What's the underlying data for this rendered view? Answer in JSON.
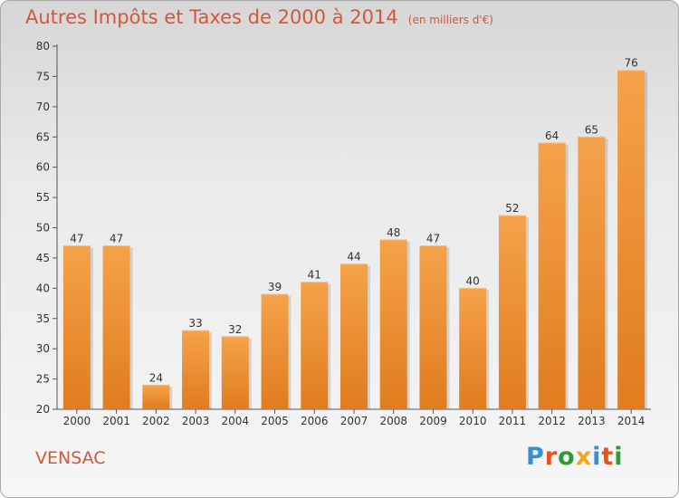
{
  "chart_data": {
    "type": "bar",
    "title": "Autres Impôts et Taxes de 2000 à 2014",
    "subtitle": "(en milliers d'€)",
    "categories": [
      "2000",
      "2001",
      "2002",
      "2003",
      "2004",
      "2005",
      "2006",
      "2007",
      "2008",
      "2009",
      "2010",
      "2011",
      "2012",
      "2013",
      "2014"
    ],
    "values": [
      47,
      47,
      24,
      33,
      32,
      39,
      41,
      44,
      48,
      47,
      40,
      52,
      64,
      65,
      76
    ],
    "ylim": [
      20,
      80
    ],
    "yticks": [
      20,
      25,
      30,
      35,
      40,
      45,
      50,
      55,
      60,
      65,
      70,
      75,
      80
    ],
    "grid": false,
    "colors": {
      "bar_top": "#f5a24a",
      "bar_bottom": "#e07c1e",
      "text_accent": "#d2583a"
    }
  },
  "footer": {
    "commune": "VENSAC",
    "logo_letters": [
      {
        "ch": "P",
        "color": "#3b8fd0"
      },
      {
        "ch": "r",
        "color": "#e8531e"
      },
      {
        "ch": "o",
        "color": "#2e9a3a"
      },
      {
        "ch": "x",
        "color": "#f2a81d"
      },
      {
        "ch": "i",
        "color": "#3b8fd0"
      },
      {
        "ch": "t",
        "color": "#e8531e"
      },
      {
        "ch": "i",
        "color": "#2e9a3a"
      }
    ]
  }
}
